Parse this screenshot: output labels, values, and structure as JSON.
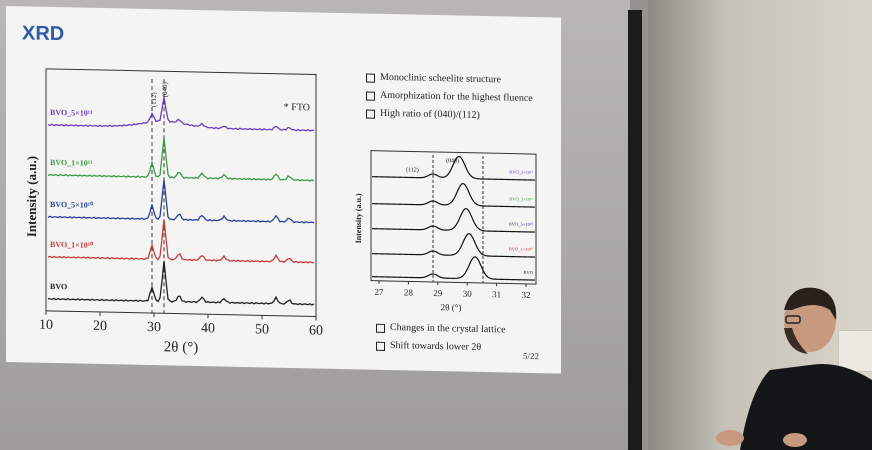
{
  "slide": {
    "title": "XRD",
    "page": "5/22",
    "bullets_top": [
      "Monoclinic scheelite structure",
      "Amorphization for the highest fluence",
      "High ratio of (040)/(112)"
    ],
    "bullets_bottom": [
      "Changes in the crystal lattice",
      "Shift towards lower 2θ"
    ]
  },
  "plot_main": {
    "xlabel": "2θ (°)",
    "ylabel": "Intensity (a.u.)",
    "xticks": [
      "10",
      "20",
      "30",
      "40",
      "50",
      "60"
    ],
    "legend": "* FTO",
    "peak_labels": [
      "(112)",
      "(040)"
    ],
    "series": [
      {
        "name": "BVO_5×10¹¹",
        "color": "#6a3fbf"
      },
      {
        "name": "BVO_1×10¹¹",
        "color": "#3a9a4a"
      },
      {
        "name": "BVO_5×10¹⁰",
        "color": "#2a3f9a"
      },
      {
        "name": "BVO_1×10¹⁰",
        "color": "#c43c3c"
      },
      {
        "name": "BVO",
        "color": "#222222"
      }
    ]
  },
  "plot_inset": {
    "xlabel": "2θ (°)",
    "ylabel": "Intensity (a.u.)",
    "xticks": [
      "27",
      "28",
      "29",
      "30",
      "31",
      "32"
    ],
    "peak_labels": [
      "(112)",
      "(040)"
    ],
    "series": [
      "BVO_5×10¹¹",
      "BVO_1×10¹¹",
      "BVO_5×10¹⁰",
      "BVO_1×10¹⁰",
      "BVO"
    ]
  }
}
